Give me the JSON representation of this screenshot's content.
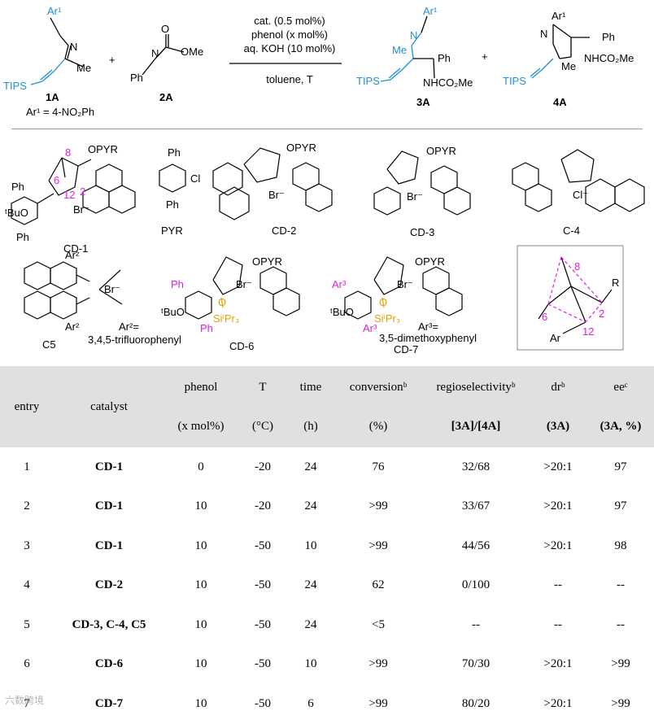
{
  "scheme": {
    "reactant1": {
      "label": "1A",
      "sub": "Ar¹ = 4-NO₂Ph",
      "ar": "Ar¹",
      "tips": "TIPS",
      "n": "N",
      "me": "Me"
    },
    "reactant2": {
      "label": "2A",
      "n": "N",
      "o": "O",
      "ome": "OMe",
      "ph": "Ph"
    },
    "plus": "+",
    "conditions": [
      "cat. (0.5 mol%)",
      "phenol (x mol%)",
      "aq. KOH (10 mol%)",
      "toluene, T"
    ],
    "product3": {
      "label": "3A",
      "ar": "Ar¹",
      "n": "N",
      "me": "Me",
      "ph": "Ph",
      "tips": "TIPS",
      "nh": "NHCO₂Me"
    },
    "product4": {
      "label": "4A",
      "ar": "Ar¹",
      "ph": "Ph",
      "nh": "NHCO₂Me",
      "me": "Me",
      "tips": "TIPS",
      "n": "N"
    }
  },
  "catalysts": {
    "cd1": {
      "label": "CD-1",
      "opyr": "OPYR",
      "br": "Br⁻",
      "ph1": "Ph",
      "ph2": "Ph",
      "tbuo": "ᵗBuO",
      "n8": "8",
      "n6": "6",
      "n12": "12",
      "n2": "2"
    },
    "pyr": {
      "label": "PYR",
      "ph1": "Ph",
      "ph2": "Ph",
      "cl": "Cl"
    },
    "cd2": {
      "label": "CD-2",
      "opyr": "OPYR",
      "br": "Br⁻"
    },
    "cd3": {
      "label": "CD-3",
      "opyr": "OPYR",
      "br": "Br⁻"
    },
    "c4": {
      "label": "C-4",
      "cl": "Cl⁻"
    },
    "c5": {
      "label": "C5",
      "ar2": "Ar²",
      "br": "Br⁻",
      "def": "Ar²=",
      "defval": "3,4,5-trifluorophenyl"
    },
    "cd6": {
      "label": "CD-6",
      "opyr": "OPYR",
      "br": "Br⁻",
      "ph1": "Ph",
      "ph2": "Ph",
      "tbuo": "ᵗBuO",
      "o": "O",
      "si": "SiⁱPr₃"
    },
    "cd7": {
      "label": "CD-7",
      "opyr": "OPYR",
      "br": "Br⁻",
      "ar3": "Ar³",
      "tbuo": "ᵗBuO",
      "o": "O",
      "si": "SiⁱPr₃",
      "def": "Ar³=",
      "defval": "3,5-dimethoxyphenyl"
    },
    "model": {
      "n8": "8",
      "n6": "6",
      "n2": "2",
      "n12": "12",
      "r": "R",
      "ar": "Ar"
    }
  },
  "table": {
    "headers": [
      {
        "top": "entry",
        "bot": ""
      },
      {
        "top": "catalyst",
        "bot": ""
      },
      {
        "top": "phenol",
        "bot": "(x mol%)"
      },
      {
        "top": "T",
        "bot": "(°C)"
      },
      {
        "top": "time",
        "bot": "(h)"
      },
      {
        "top": "conversionᵇ",
        "bot": "(%)"
      },
      {
        "top": "regioselectivityᵇ",
        "bot": "[3A]/[4A]"
      },
      {
        "top": "drᵇ",
        "bot": "(3A)"
      },
      {
        "top": "eeᶜ",
        "bot": "(3A, %)"
      }
    ],
    "rows": [
      [
        "1",
        "CD-1",
        "0",
        "-20",
        "24",
        "76",
        "32/68",
        ">20:1",
        "97"
      ],
      [
        "2",
        "CD-1",
        "10",
        "-20",
        "24",
        ">99",
        "33/67",
        ">20:1",
        "97"
      ],
      [
        "3",
        "CD-1",
        "10",
        "-50",
        "10",
        ">99",
        "44/56",
        ">20:1",
        "98"
      ],
      [
        "4",
        "CD-2",
        "10",
        "-50",
        "24",
        "62",
        "0/100",
        "--",
        "--"
      ],
      [
        "5",
        "CD-3, C-4, C5",
        "10",
        "-50",
        "24",
        "<5",
        "--",
        "--",
        "--"
      ],
      [
        "6",
        "CD-6",
        "10",
        "-50",
        "10",
        ">99",
        "70/30",
        ">20:1",
        ">99"
      ],
      [
        "7",
        "CD-7",
        "10",
        "-50",
        "6",
        ">99",
        "80/20",
        ">20:1",
        ">99"
      ]
    ]
  },
  "watermark": "六数跨境",
  "colors": {
    "blue": "#1f8fd8",
    "magenta": "#e01ee0",
    "orange": "#e8a000",
    "header_bg": "#e0e0e0"
  }
}
